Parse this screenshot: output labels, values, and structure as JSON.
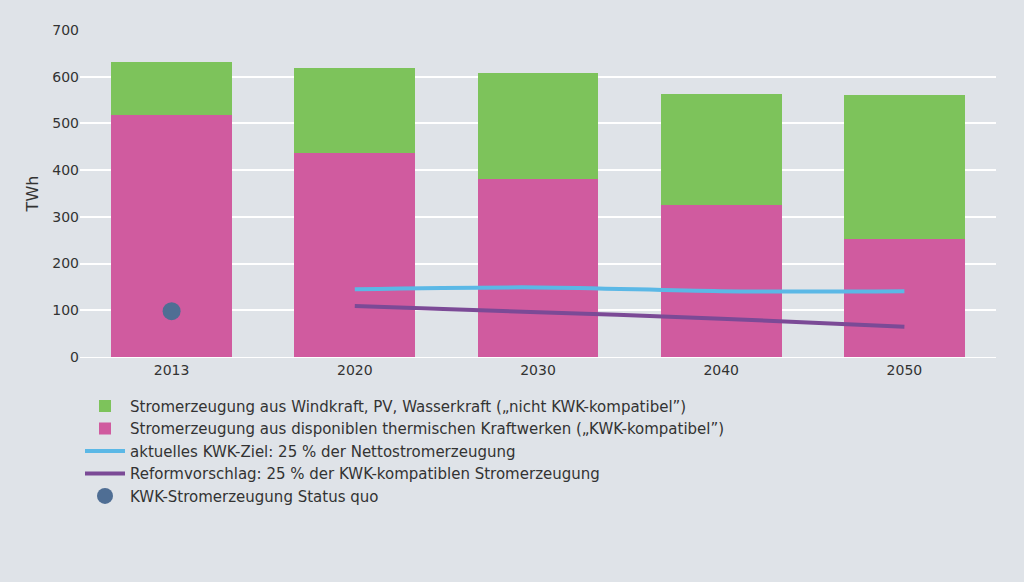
{
  "chart_data": {
    "type": "bar",
    "stacked": true,
    "categories": [
      "2013",
      "2020",
      "2030",
      "2040",
      "2050"
    ],
    "y_label": "TWh",
    "ylim": [
      0,
      700
    ],
    "yticks": [
      0,
      100,
      200,
      300,
      400,
      500,
      600,
      700
    ],
    "grid": true,
    "legend": "bottom",
    "series": [
      {
        "name": "Stromerzeugung aus Windkraft, PV, Wasserkraft („nicht KWK-kompatibel”)",
        "type": "bar",
        "color": "#7dc35b",
        "values": [
          114,
          181,
          228,
          238,
          308
        ]
      },
      {
        "name": "Stromerzeugung aus disponiblen thermischen Kraftwerken („KWK-kompatibel”)",
        "type": "bar",
        "color": "#d05b9f",
        "values": [
          518,
          437,
          380,
          325,
          252
        ]
      },
      {
        "name": "aktuelles KWK-Ziel: 25 % der Nettostromerzeugung",
        "type": "line",
        "color": "#5bb8e6",
        "values": [
          null,
          145,
          149,
          141,
          141
        ]
      },
      {
        "name": "Reformvorschlag: 25 % der KWK-kompatiblen Stromerzeugung",
        "type": "line",
        "color": "#7b4a96",
        "values": [
          null,
          109,
          96,
          82,
          65
        ]
      },
      {
        "name": "KWK-Stromerzeugung Status quo",
        "type": "scatter",
        "marker": "circle",
        "color": "#4f6e94",
        "values": [
          98,
          null,
          null,
          null,
          null
        ]
      }
    ]
  }
}
